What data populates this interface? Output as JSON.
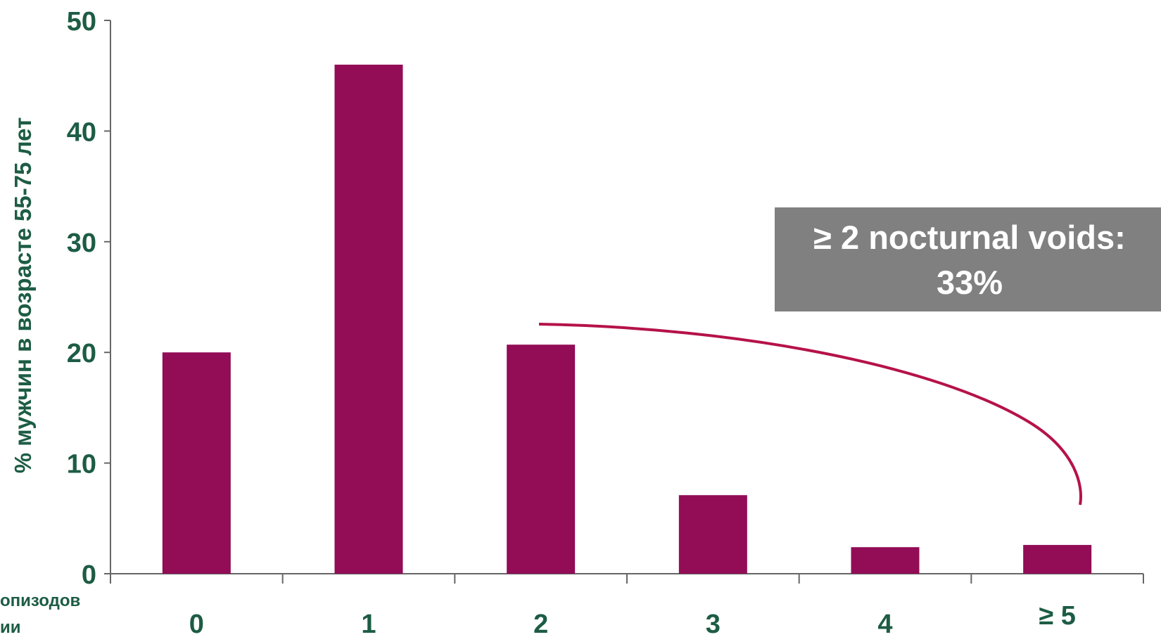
{
  "chart_data": {
    "type": "bar",
    "categories": [
      "0",
      "1",
      "2",
      "3",
      "4",
      "≥ 5"
    ],
    "values": [
      20,
      46,
      20.7,
      7.1,
      2.4,
      2.6
    ],
    "ylabel": "% мужчин в возрасте 55-75 лет",
    "xlabel_partial": [
      "опизодов",
      "ии"
    ],
    "ylim": [
      0,
      50
    ],
    "yticks": [
      0,
      10,
      20,
      30,
      40,
      50
    ],
    "grid": false,
    "bar_color": "#920c56",
    "axis_color": "#666666",
    "label_color": "#1d5c45",
    "annotation": {
      "line1": "≥ 2 nocturnal voids:",
      "line2": "33%",
      "box_color": "#808080",
      "arc_color": "#b5124a"
    }
  }
}
